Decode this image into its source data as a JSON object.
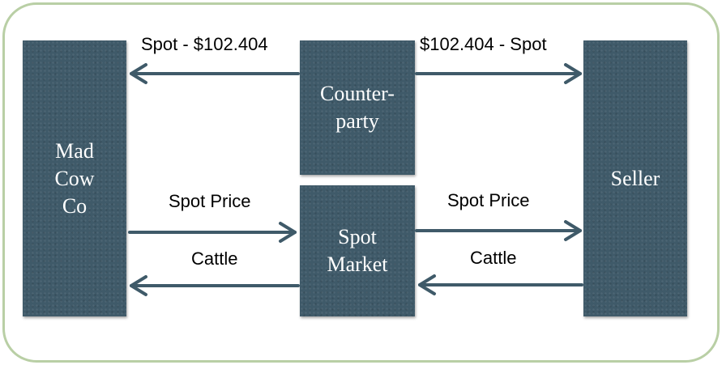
{
  "nodes": {
    "madcow": [
      "Mad",
      "Cow",
      "Co"
    ],
    "counterparty": [
      "Counter-",
      "party"
    ],
    "spotmarket": [
      "Spot",
      "Market"
    ],
    "seller": [
      "Seller"
    ]
  },
  "edges": {
    "counterparty_to_madcow": "Spot - $102.404",
    "counterparty_to_seller": "$102.404 - Spot",
    "madcow_to_market": "Spot Price",
    "market_to_madcow": "Cattle",
    "seller_to_market": "Spot Price",
    "market_to_seller": "Cattle"
  },
  "colors": {
    "box": "#3f5a69",
    "arrow": "#3f5a69",
    "frame": "#b9cfa5"
  }
}
